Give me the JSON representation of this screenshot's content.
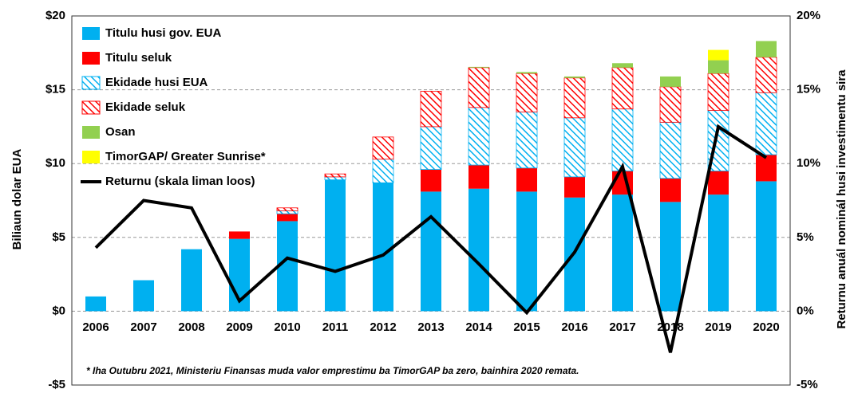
{
  "chart_data": {
    "type": "stacked_bar_line",
    "ylabel": "Biliaun dolar EUA",
    "y2label": "Returnu anuál nominál husi investimentu sira",
    "footnote": "* Iha Outubru 2021, Ministeriu Finansas  muda valor emprestimu ba TimorGAP ba zero, bainhira  2020 remata.",
    "categories": [
      "2006",
      "2007",
      "2008",
      "2009",
      "2010",
      "2011",
      "2012",
      "2013",
      "2014",
      "2015",
      "2016",
      "2017",
      "2018",
      "2019",
      "2020"
    ],
    "series": [
      {
        "name": "Titulu husi gov. EUA",
        "color": "#00b0f0",
        "values": [
          1.0,
          2.1,
          4.2,
          4.9,
          6.1,
          8.9,
          8.7,
          8.1,
          8.3,
          8.1,
          7.7,
          7.9,
          7.4,
          7.9,
          8.8
        ]
      },
      {
        "name": "Titulu seluk",
        "color": "#ff0000",
        "values": [
          0,
          0,
          0,
          0.5,
          0.5,
          0,
          0,
          1.5,
          1.6,
          1.6,
          1.4,
          1.6,
          1.6,
          1.6,
          1.8
        ]
      },
      {
        "name": "Ekidade husi EUA",
        "color": "#00b0f0",
        "pattern": "hatch",
        "values": [
          0,
          0,
          0,
          0,
          0.2,
          0.2,
          1.6,
          2.9,
          3.9,
          3.8,
          4.0,
          4.2,
          3.8,
          4.1,
          4.2
        ]
      },
      {
        "name": "Ekidade seluk",
        "color": "#ff0000",
        "pattern": "hatch",
        "values": [
          0,
          0,
          0,
          0,
          0.2,
          0.2,
          1.5,
          2.4,
          2.7,
          2.6,
          2.7,
          2.8,
          2.4,
          2.5,
          2.4
        ]
      },
      {
        "name": "Osan",
        "color": "#92d050",
        "values": [
          0,
          0,
          0,
          0,
          0,
          0,
          0,
          0,
          0.05,
          0.1,
          0.1,
          0.3,
          0.7,
          0.9,
          1.1
        ]
      },
      {
        "name": "TimorGAP/ Greater Sunrise*",
        "color": "#ffff00",
        "values": [
          0,
          0,
          0,
          0,
          0,
          0,
          0,
          0,
          0,
          0,
          0,
          0,
          0,
          0.7,
          0
        ]
      },
      {
        "name": "Returnu (skala liman loos)",
        "color": "#000000",
        "type": "line",
        "axis": "y2",
        "values": [
          4.3,
          7.5,
          7.0,
          0.7,
          3.6,
          2.7,
          3.8,
          6.4,
          3.2,
          -0.1,
          4.0,
          9.8,
          -2.8,
          12.5,
          10.4
        ]
      }
    ],
    "ylim": [
      -5,
      20
    ],
    "yticks": [
      {
        "value": -5,
        "label": "-$5"
      },
      {
        "value": 0,
        "label": "$0"
      },
      {
        "value": 5,
        "label": "$5"
      },
      {
        "value": 10,
        "label": "$10"
      },
      {
        "value": 15,
        "label": "$15"
      },
      {
        "value": 20,
        "label": "$20"
      }
    ],
    "y2lim": [
      -5,
      20
    ],
    "y2ticks": [
      {
        "value": -5,
        "label": "-5%"
      },
      {
        "value": 0,
        "label": "0%"
      },
      {
        "value": 5,
        "label": "5%"
      },
      {
        "value": 10,
        "label": "10%"
      },
      {
        "value": 15,
        "label": "15%"
      },
      {
        "value": 20,
        "label": "20%"
      }
    ],
    "grid": true
  }
}
